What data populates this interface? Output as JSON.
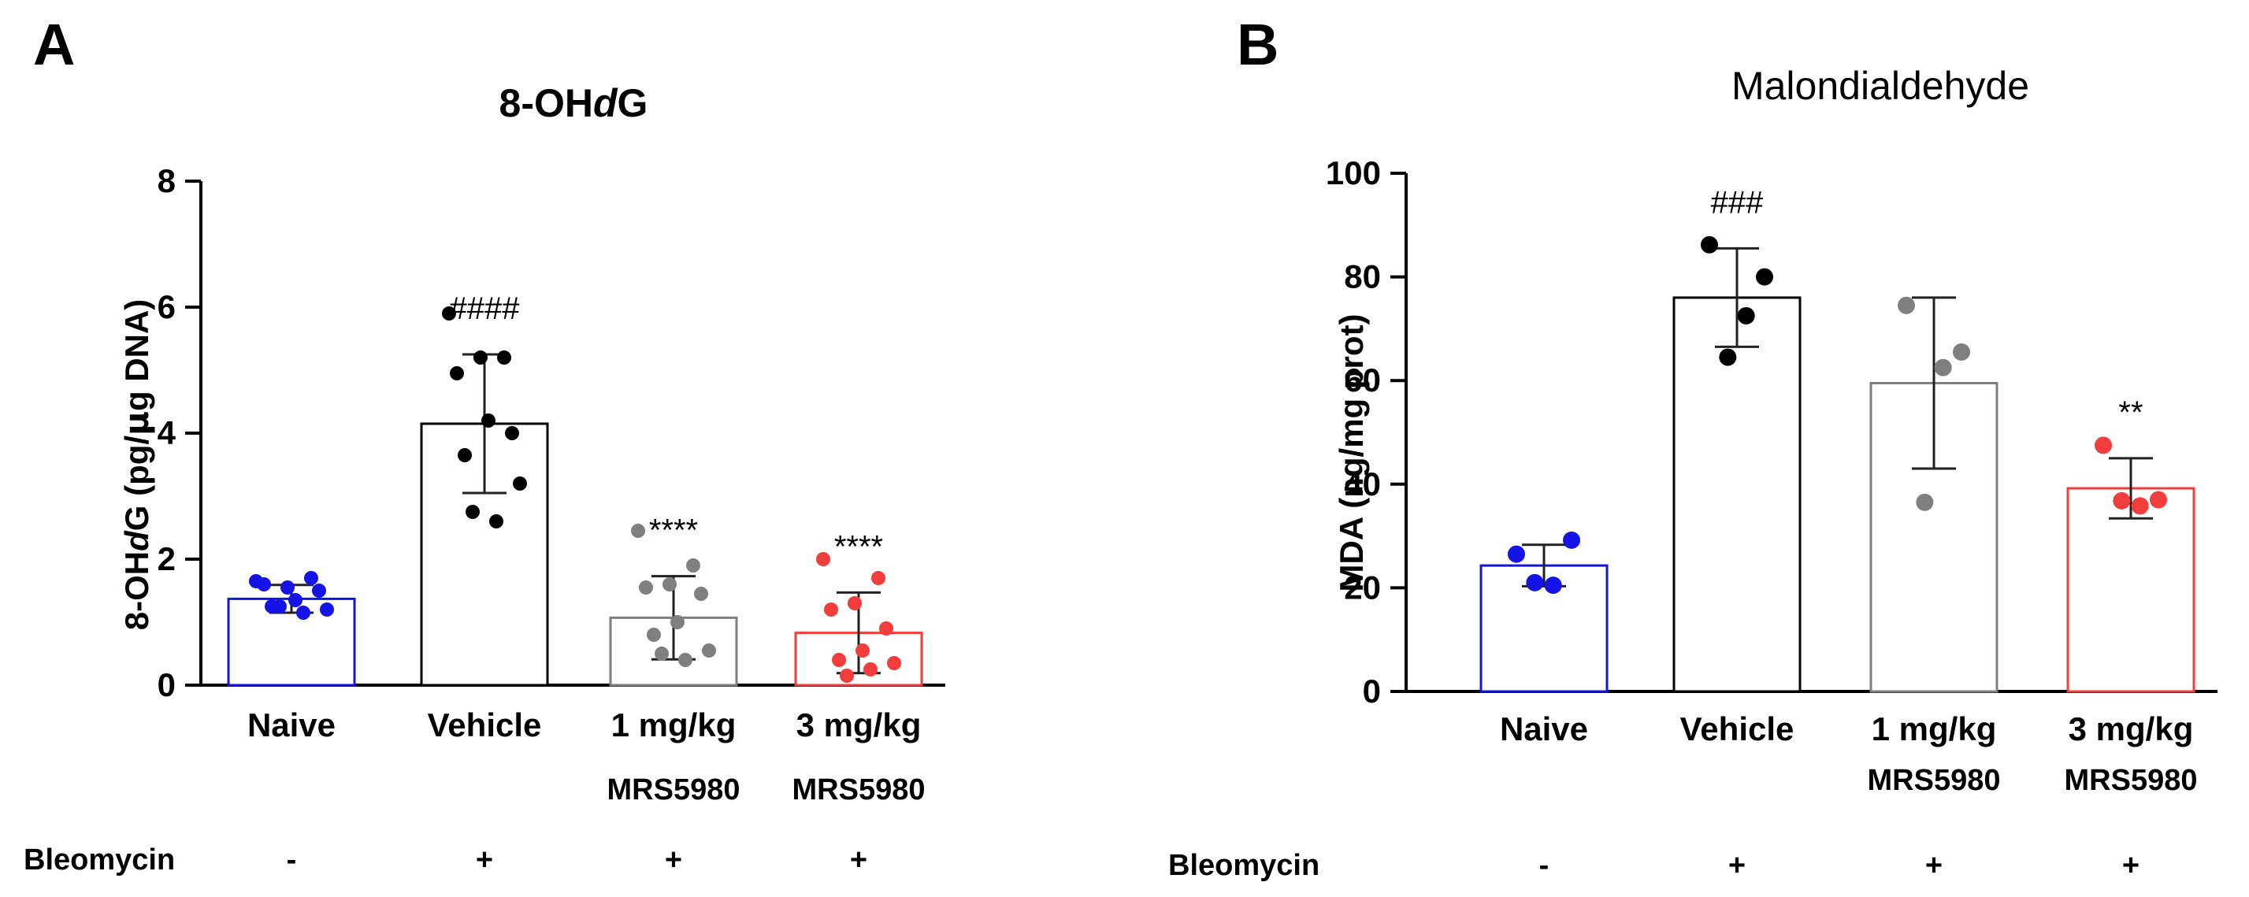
{
  "colors": {
    "naive": "#1414e6",
    "vehicle": "#000000",
    "mrs1": "#7f7f7f",
    "mrs3": "#f23d3d"
  },
  "row_label": "Bleomycin",
  "chart_data": [
    {
      "panel": "A",
      "type": "bar",
      "title_parts": [
        "8-OH",
        "d",
        "G"
      ],
      "ylabel_parts": [
        "8-OH",
        "d",
        "G (pg/",
        "μ",
        "g DNA)"
      ],
      "ylim": [
        0,
        8
      ],
      "yticks": [
        "0",
        "2",
        "4",
        "6",
        "8"
      ],
      "categories": [
        "Naive",
        "Vehicle",
        "1 mg/kg",
        "3 mg/kg"
      ],
      "sublabels": [
        "",
        "",
        "MRS5980",
        "MRS5980"
      ],
      "bleomycin": [
        "-",
        "+",
        "+",
        "+"
      ],
      "series": [
        {
          "name": "Naive",
          "mean": 1.37,
          "sd": 0.22,
          "sig": "",
          "points": [
            1.65,
            1.7,
            1.55,
            1.6,
            1.5,
            1.35,
            1.25,
            1.2,
            1.15,
            1.25
          ]
        },
        {
          "name": "Vehicle",
          "mean": 4.15,
          "sd": 1.1,
          "sig": "####",
          "points": [
            5.9,
            5.2,
            5.2,
            4.95,
            4.0,
            4.2,
            3.65,
            3.2,
            2.6,
            2.75
          ]
        },
        {
          "name": "1 mg/kg MRS5980",
          "mean": 1.07,
          "sd": 0.66,
          "sig": "****",
          "points": [
            2.45,
            1.9,
            1.6,
            1.55,
            1.45,
            1.0,
            0.8,
            0.55,
            0.4,
            0.5
          ]
        },
        {
          "name": "3 mg/kg MRS5980",
          "mean": 0.83,
          "sd": 0.64,
          "sig": "****",
          "points": [
            2.0,
            1.7,
            1.3,
            1.2,
            0.9,
            0.55,
            0.4,
            0.35,
            0.25,
            0.15
          ]
        }
      ]
    },
    {
      "panel": "B",
      "type": "bar",
      "title": "Malondialdehyde",
      "ylabel": "MDA (ng/mg prot)",
      "ylim": [
        0,
        100
      ],
      "yticks": [
        "0",
        "20",
        "40",
        "60",
        "80",
        "100"
      ],
      "categories": [
        "Naive",
        "Vehicle",
        "1 mg/kg",
        "3 mg/kg"
      ],
      "sublabels": [
        "",
        "",
        "MRS5980",
        "MRS5980"
      ],
      "bleomycin": [
        "-",
        "+",
        "+",
        "+"
      ],
      "series": [
        {
          "name": "Naive",
          "mean": 24.3,
          "sd": 4.0,
          "sig": "",
          "points": [
            26.5,
            29.2,
            20.5,
            21.0
          ]
        },
        {
          "name": "Vehicle",
          "mean": 76.0,
          "sd": 9.5,
          "sig": "###",
          "points": [
            86.2,
            80.0,
            72.5,
            64.5
          ]
        },
        {
          "name": "1 mg/kg MRS5980",
          "mean": 59.5,
          "sd": 16.5,
          "sig": "",
          "points": [
            74.5,
            65.5,
            62.5,
            36.5
          ]
        },
        {
          "name": "3 mg/kg MRS5980",
          "mean": 39.2,
          "sd": 5.8,
          "sig": "**",
          "points": [
            47.5,
            37.0,
            35.8,
            36.8
          ]
        }
      ]
    }
  ]
}
